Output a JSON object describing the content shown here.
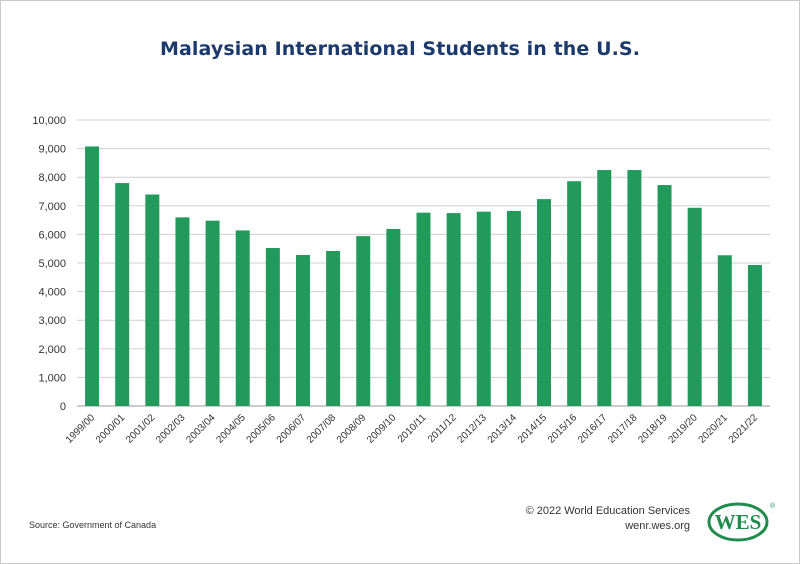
{
  "title": "Malaysian International Students in the U.S.",
  "source_text": "Source: Government of Canada",
  "copyright_line1": "© 2022 World Education Services",
  "copyright_line2": "wenr.wes.org",
  "logo_text": "WES",
  "logo_mark": "®",
  "colors": {
    "bar": "#229a5c",
    "title": "#1b3a6b",
    "grid": "#d0d0d0",
    "logo": "#1f8c4e"
  },
  "chart_data": {
    "type": "bar",
    "title": "Malaysian International Students in the U.S.",
    "xlabel": "",
    "ylabel": "",
    "ylim": [
      0,
      10000
    ],
    "yticks": [
      0,
      1000,
      2000,
      3000,
      4000,
      5000,
      6000,
      7000,
      8000,
      9000,
      10000
    ],
    "ytick_labels": [
      "0",
      "1,000",
      "2,000",
      "3,000",
      "4,000",
      "5,000",
      "6,000",
      "7,000",
      "8,000",
      "9,000",
      "10,000"
    ],
    "grid": true,
    "legend": "none",
    "categories": [
      "1999/00",
      "2000/01",
      "2001/02",
      "2002/03",
      "2003/04",
      "2004/05",
      "2005/06",
      "2006/07",
      "2007/08",
      "2008/09",
      "2009/10",
      "2010/11",
      "2011/12",
      "2012/13",
      "2013/14",
      "2014/15",
      "2015/16",
      "2016/17",
      "2017/18",
      "2018/19",
      "2019/20",
      "2020/21",
      "2021/22"
    ],
    "values": [
      9075,
      7795,
      7395,
      6595,
      6480,
      6140,
      5525,
      5280,
      5420,
      5940,
      6190,
      6760,
      6745,
      6795,
      6820,
      7235,
      7860,
      8250,
      8250,
      7725,
      6930,
      5270,
      4930
    ]
  }
}
